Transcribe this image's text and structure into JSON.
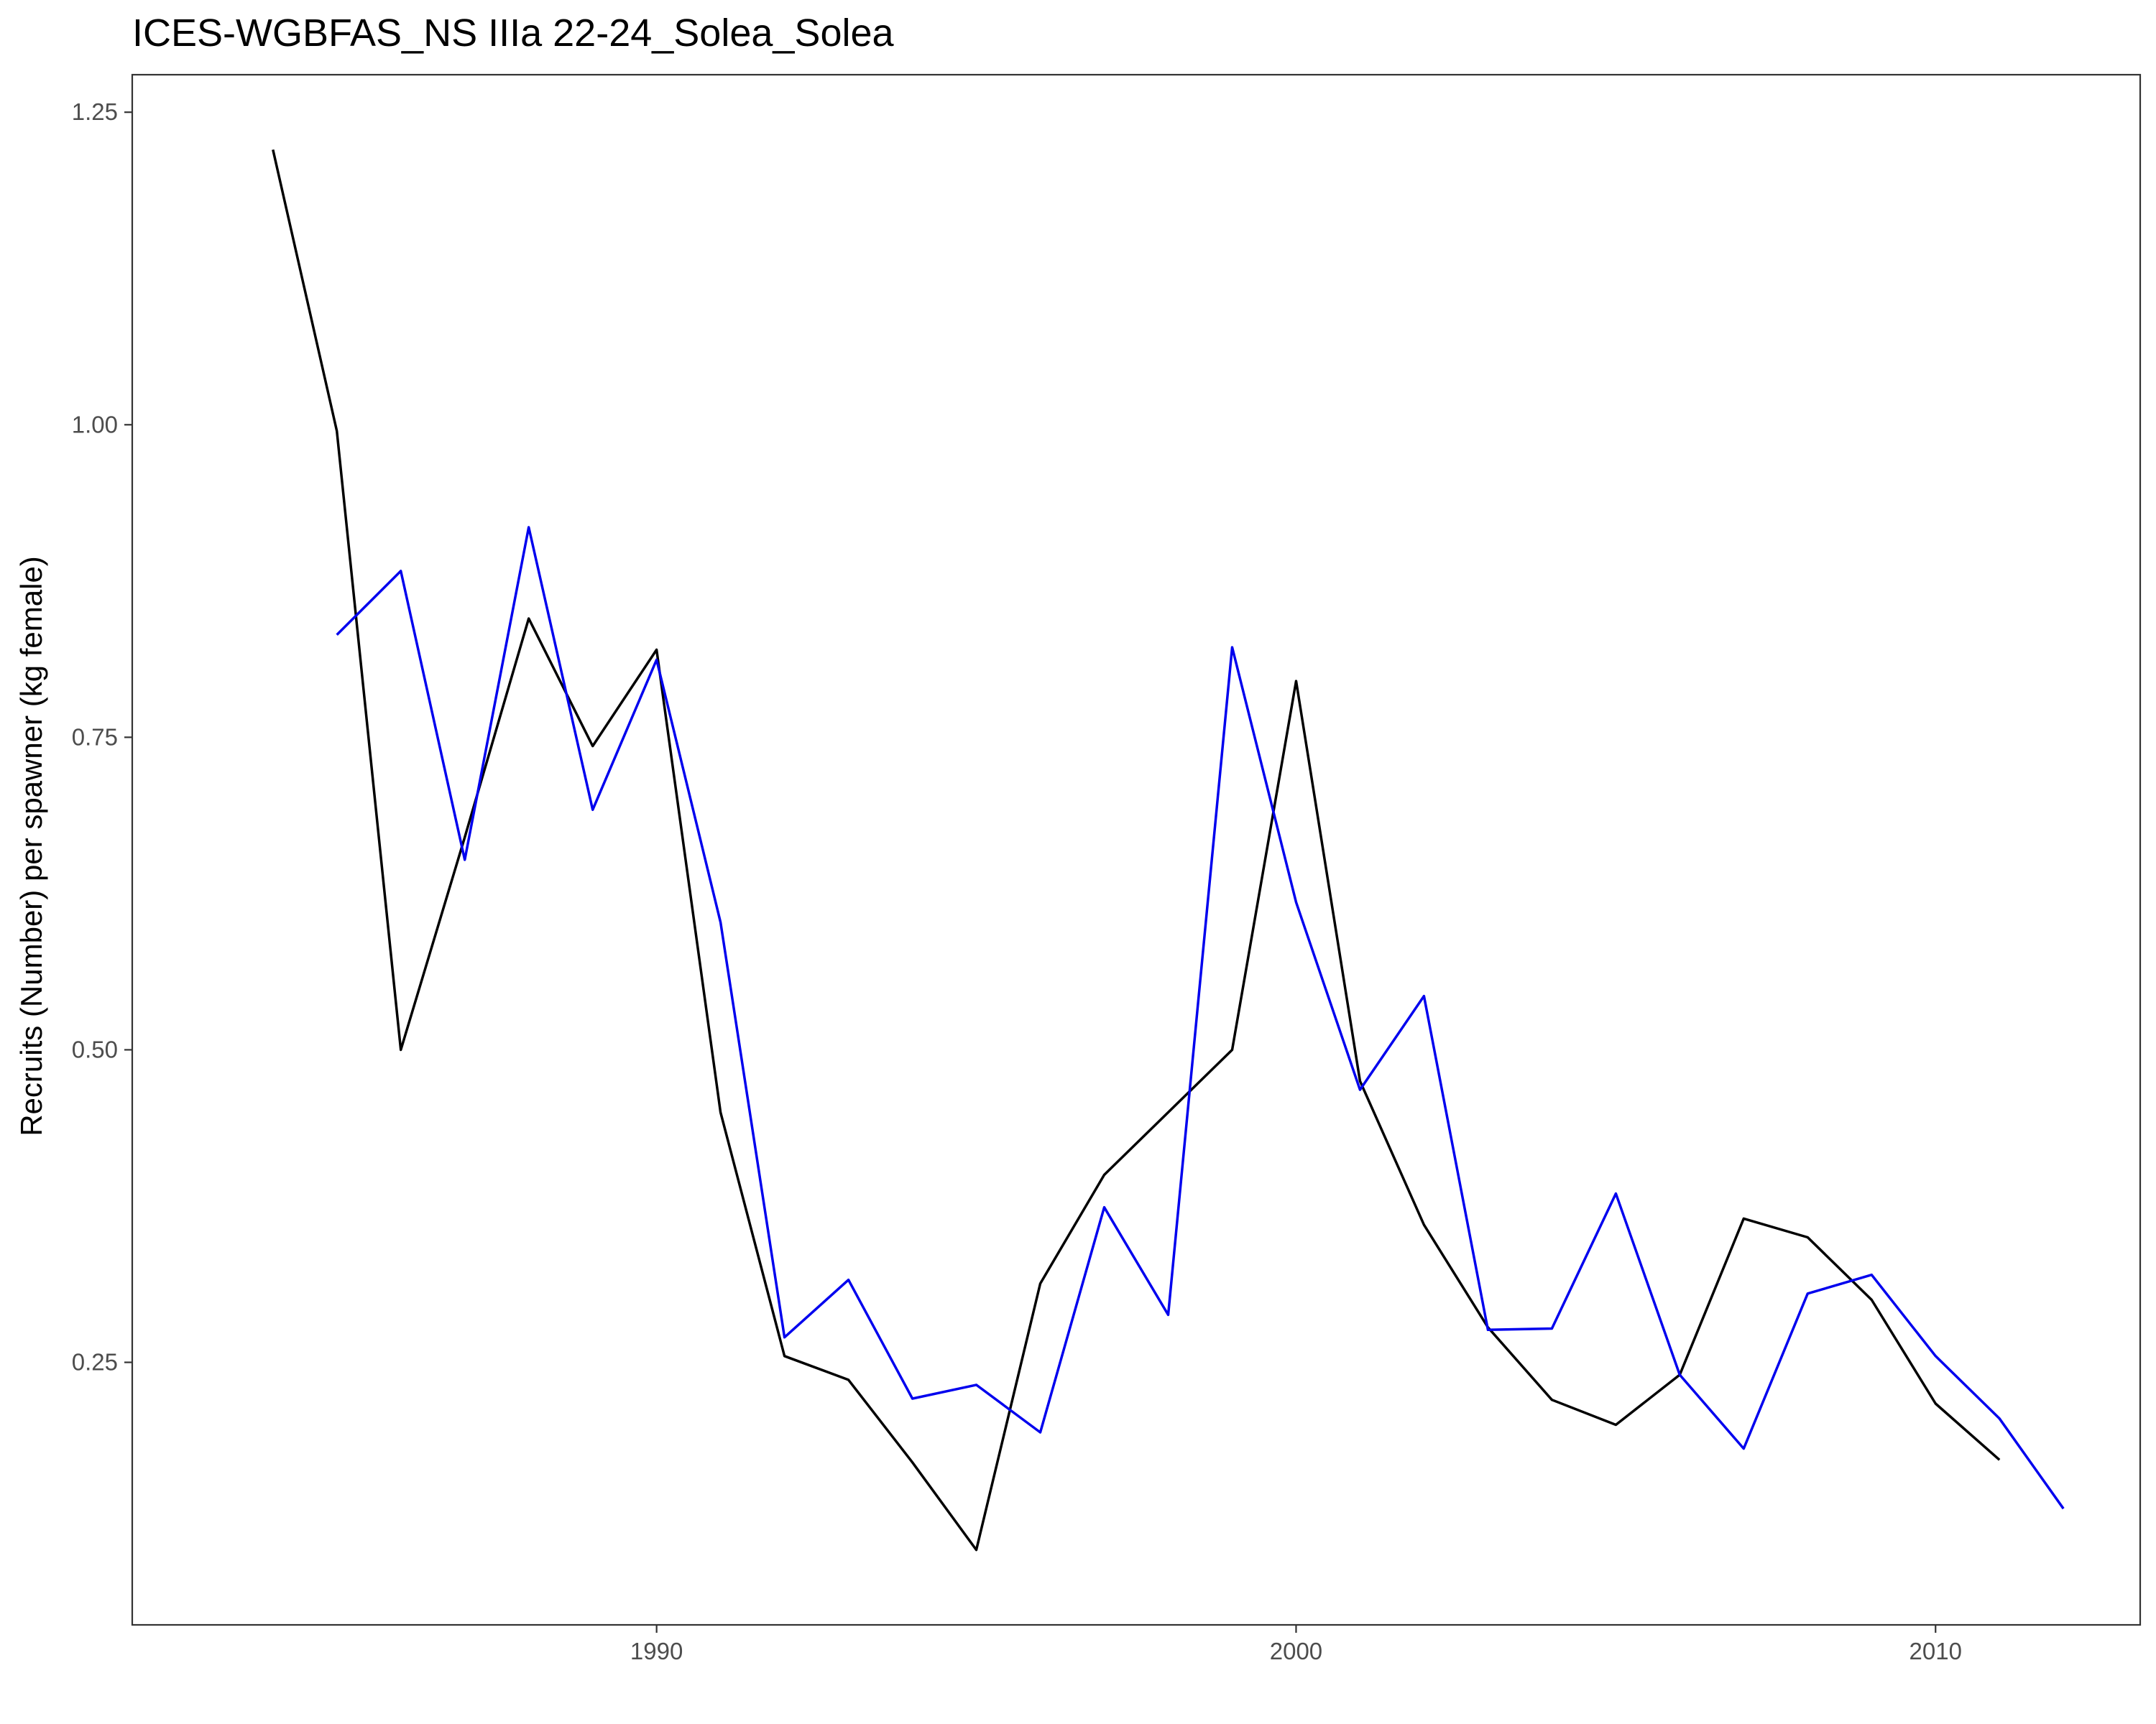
{
  "chart_data": {
    "type": "line",
    "title": "ICES-WGBFAS_NS IIIa 22-24_Solea_Solea",
    "xlabel": "",
    "ylabel": "Recruits (Number) per spawner (kg female)",
    "xlim": [
      1981.8,
      2013.2
    ],
    "ylim": [
      0.04,
      1.28
    ],
    "x_ticks": [
      1990,
      2000,
      2010
    ],
    "x_tick_labels": [
      "1990",
      "2000",
      "2010"
    ],
    "y_ticks": [
      0.25,
      0.5,
      0.75,
      1.0,
      1.25
    ],
    "y_tick_labels": [
      "0.25",
      "0.50",
      "0.75",
      "1.00",
      "1.25"
    ],
    "grid": false,
    "legend": "none",
    "series": [
      {
        "color": "#000000",
        "x": [
          1984,
          1985,
          1986,
          1987,
          1988,
          1989,
          1990,
          1991,
          1992,
          1993,
          1994,
          1995,
          1996,
          1997,
          1998,
          1999,
          2000,
          2001,
          2002,
          2003,
          2004,
          2005,
          2006,
          2007,
          2008,
          2009,
          2010,
          2011
        ],
        "values": [
          1.22,
          0.995,
          0.5,
          0.67,
          0.845,
          0.743,
          0.82,
          0.45,
          0.255,
          0.236,
          0.17,
          0.1,
          0.313,
          0.4,
          0.45,
          0.5,
          0.795,
          0.475,
          0.36,
          0.278,
          0.22,
          0.2,
          0.24,
          0.365,
          0.35,
          0.3,
          0.217,
          0.172
        ]
      },
      {
        "color": "#0000ee",
        "x": [
          1985,
          1986,
          1987,
          1988,
          1989,
          1990,
          1991,
          1992,
          1993,
          1994,
          1995,
          1996,
          1997,
          1998,
          1999,
          2000,
          2001,
          2002,
          2003,
          2004,
          2005,
          2006,
          2007,
          2008,
          2009,
          2010,
          2011,
          2012
        ],
        "values": [
          0.832,
          0.883,
          0.652,
          0.918,
          0.692,
          0.812,
          0.602,
          0.27,
          0.316,
          0.221,
          0.232,
          0.194,
          0.374,
          0.288,
          0.822,
          0.618,
          0.468,
          0.543,
          0.276,
          0.277,
          0.385,
          0.24,
          0.181,
          0.305,
          0.32,
          0.255,
          0.205,
          0.133
        ]
      }
    ]
  }
}
